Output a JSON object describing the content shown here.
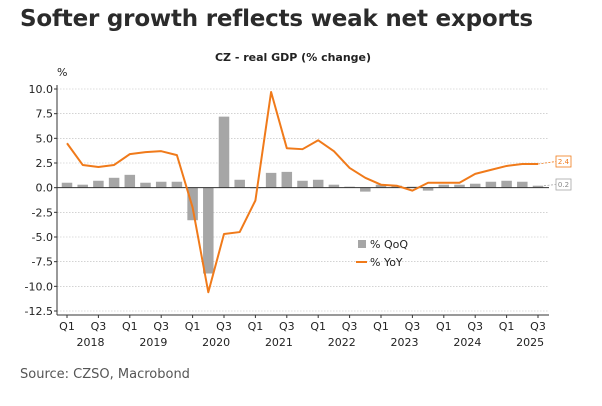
{
  "headline": "Softer growth reflects weak net exports",
  "source": "Source: CZSO, Macrobond",
  "colors": {
    "bar": "#a6a6a6",
    "line": "#f07a1a",
    "axis": "#333333",
    "grid": "#b9b9b9"
  },
  "chart_data": {
    "type": "bar",
    "title": "CZ - real GDP (% change)",
    "ylabel": "%",
    "ylim": [
      -13,
      11
    ],
    "yticks": [
      10.0,
      7.5,
      5.0,
      2.5,
      0.0,
      -2.5,
      -5.0,
      -7.5,
      -10.0,
      -12.5
    ],
    "ytick_labels": [
      "10.0",
      "7.5",
      "5.0",
      "2.5",
      "0.0",
      "-2.5",
      "-5.0",
      "-7.5",
      "-10.0",
      "-12.5"
    ],
    "grid": true,
    "legend_position": "center-right",
    "categories": [
      "2018 Q1",
      "2018 Q2",
      "2018 Q3",
      "2018 Q4",
      "2019 Q1",
      "2019 Q2",
      "2019 Q3",
      "2019 Q4",
      "2020 Q1",
      "2020 Q2",
      "2020 Q3",
      "2020 Q4",
      "2021 Q1",
      "2021 Q2",
      "2021 Q3",
      "2021 Q4",
      "2022 Q1",
      "2022 Q2",
      "2022 Q3",
      "2022 Q4",
      "2023 Q1",
      "2023 Q2",
      "2023 Q3",
      "2023 Q4",
      "2024 Q1",
      "2024 Q2",
      "2024 Q3",
      "2024 Q4",
      "2025 Q1",
      "2025 Q2",
      "2025 Q3"
    ],
    "quarter_labels": [
      "Q1",
      "Q3",
      "Q1",
      "Q3",
      "Q1",
      "Q3",
      "Q1",
      "Q3",
      "Q1",
      "Q3",
      "Q1",
      "Q3",
      "Q1",
      "Q3",
      "Q1",
      "Q3"
    ],
    "year_labels": [
      "2018",
      "2019",
      "2020",
      "2021",
      "2022",
      "2023",
      "2024",
      "2025"
    ],
    "series": [
      {
        "name": "% QoQ",
        "kind": "bar",
        "values": [
          0.5,
          0.3,
          0.7,
          1.0,
          1.3,
          0.5,
          0.6,
          0.6,
          -3.3,
          -8.7,
          7.2,
          0.8,
          0.0,
          1.5,
          1.6,
          0.7,
          0.8,
          0.3,
          0.1,
          -0.4,
          0.3,
          0.2,
          0.1,
          -0.3,
          0.3,
          0.3,
          0.4,
          0.6,
          0.7,
          0.6,
          0.2
        ]
      },
      {
        "name": "% YoY",
        "kind": "line",
        "values": [
          4.5,
          2.3,
          2.1,
          2.3,
          3.4,
          3.6,
          3.7,
          3.3,
          -2.0,
          -10.6,
          -4.7,
          -4.5,
          -1.3,
          9.7,
          4.0,
          3.9,
          4.8,
          3.7,
          2.0,
          1.0,
          0.3,
          0.2,
          -0.3,
          0.5,
          0.5,
          0.5,
          1.4,
          1.8,
          2.2,
          2.4,
          2.4
        ]
      }
    ],
    "end_labels": {
      "yoy": "2.4",
      "qoq": "0.2"
    }
  }
}
